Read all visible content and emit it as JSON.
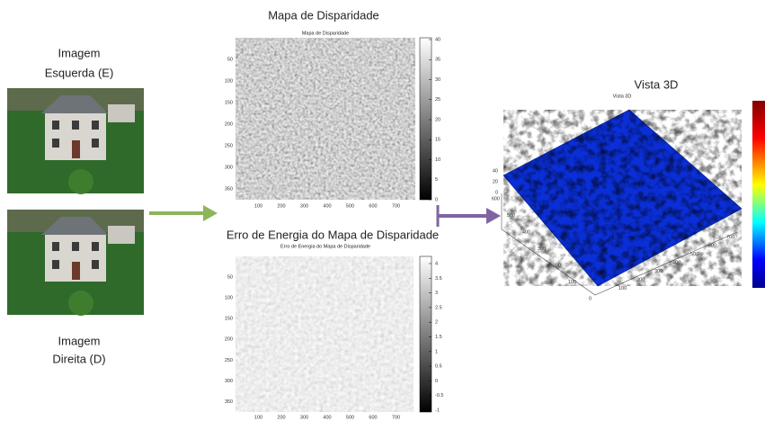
{
  "left_panel": {
    "label_top": [
      "Imagem",
      "Esquerda (E)"
    ],
    "label_bottom": [
      "Imagem",
      "Direita (D)"
    ]
  },
  "disparity": {
    "title": "Mapa de Disparidade",
    "plot_title": "Mapa de Disparidade",
    "xticks": [
      100,
      200,
      300,
      400,
      500,
      600,
      700
    ],
    "yticks": [
      50,
      100,
      150,
      200,
      250,
      300,
      350
    ],
    "colorbar_ticks": [
      0,
      5,
      10,
      15,
      20,
      25,
      30,
      35,
      40
    ]
  },
  "error": {
    "title": "Erro de Energia do Mapa de Disparidade",
    "plot_title": "Erro de Energia do Mapa de Disparidade",
    "xticks": [
      100,
      200,
      300,
      400,
      500,
      600,
      700
    ],
    "yticks": [
      50,
      100,
      150,
      200,
      250,
      300,
      350
    ],
    "colorbar_ticks": [
      -1,
      -0.5,
      0,
      0.5,
      1,
      1.5,
      2,
      2.5,
      3,
      3.5,
      4
    ]
  },
  "view3d": {
    "title": "Vista 3D",
    "plot_title": "Vista 3D",
    "zticks": [
      0,
      20,
      40
    ],
    "yticks": [
      0,
      100,
      200,
      300,
      400,
      500,
      600
    ],
    "xticks": [
      100,
      200,
      300,
      400,
      500,
      600,
      700
    ]
  }
}
